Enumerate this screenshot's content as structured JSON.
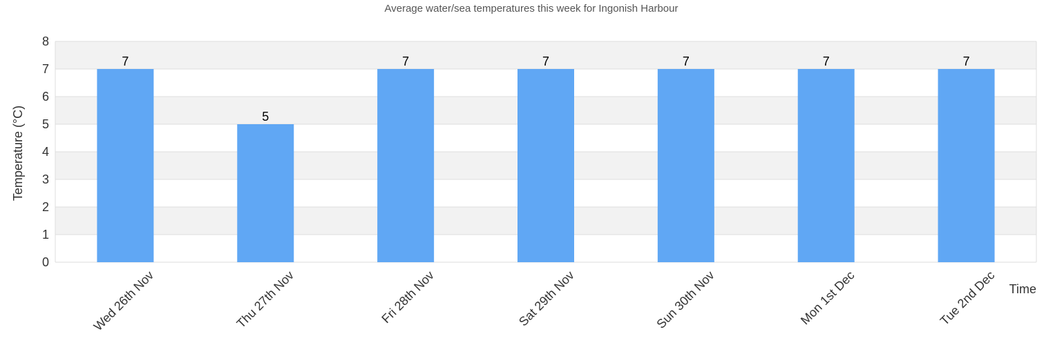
{
  "chart_data": {
    "type": "bar",
    "title": "Average water/sea temperatures this week for Ingonish Harbour",
    "xlabel": "Time",
    "ylabel": "Temperature (°C)",
    "categories": [
      "Wed 26th Nov",
      "Thu 27th Nov",
      "Fri 28th Nov",
      "Sat 29th Nov",
      "Sun 30th Nov",
      "Mon 1st Dec",
      "Tue 2nd Dec"
    ],
    "values": [
      7,
      5,
      7,
      7,
      7,
      7,
      7
    ],
    "ylim": [
      0,
      8
    ],
    "yticks": [
      0,
      1,
      2,
      3,
      4,
      5,
      6,
      7,
      8
    ],
    "bar_color": "#60a7f4",
    "grid": true,
    "band_color": "#f2f2f2",
    "grid_color": "#dddddd"
  }
}
